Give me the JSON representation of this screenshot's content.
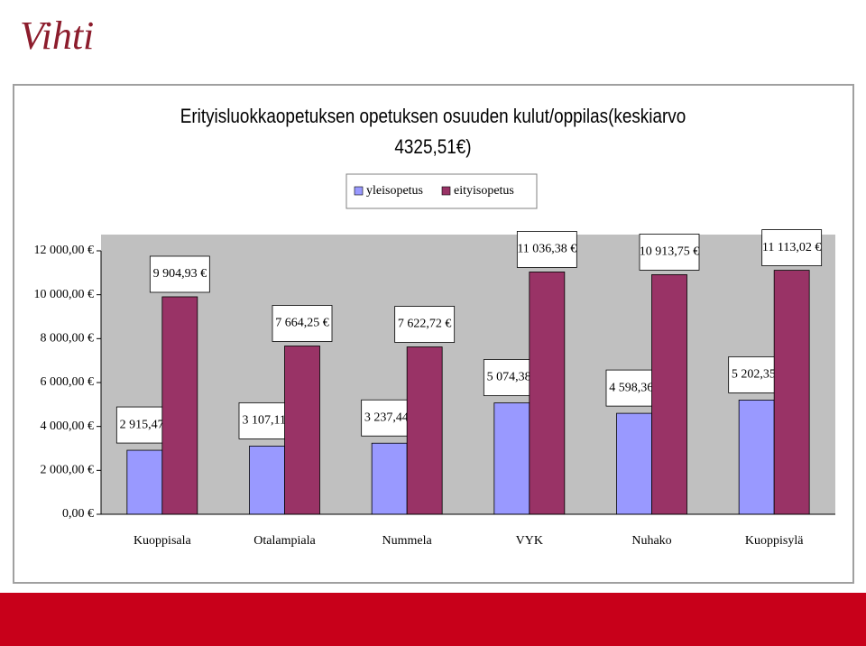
{
  "logo": "Vihti",
  "chart_data": {
    "type": "bar",
    "title": "Erityisluokkaopetuksen opetuksen osuuden kulut/oppilas(keskiarvo 4325,51€)",
    "categories": [
      "Kuoppisala",
      "Otalampiala",
      "Nummela",
      "VYK",
      "Nuhako",
      "Kuoppisylä"
    ],
    "series": [
      {
        "name": "yleisopetus",
        "color": "#9999ff",
        "values": [
          2915.47,
          3107.11,
          3237.44,
          5074.38,
          4598.36,
          5202.35
        ],
        "value_labels": [
          "2 915,47 €",
          "3 107,11 €",
          "3 237,44 €",
          "5 074,38 €",
          "4 598,36 €",
          "5 202,35 €"
        ]
      },
      {
        "name": "eityisopetus",
        "color": "#993366",
        "values": [
          9904.93,
          7664.25,
          7622.72,
          11036.38,
          10913.75,
          11113.02
        ],
        "value_labels": [
          "9 904,93 €",
          "7 664,25 €",
          "7 622,72 €",
          "11 036,38 €",
          "10 913,75 €",
          "11 113,02 €"
        ]
      }
    ],
    "ylim": [
      0,
      12000
    ],
    "yticks": [
      {
        "value": 0,
        "label": "0,00 €"
      },
      {
        "value": 2000,
        "label": "2 000,00 €"
      },
      {
        "value": 4000,
        "label": "4 000,00 €"
      },
      {
        "value": 6000,
        "label": "6 000,00 €"
      },
      {
        "value": 8000,
        "label": "8 000,00 €"
      },
      {
        "value": 10000,
        "label": "10 000,00 €"
      },
      {
        "value": 12000,
        "label": "12 000,00 €"
      }
    ],
    "legend": "top",
    "plot_background": "#c0c0c0"
  }
}
